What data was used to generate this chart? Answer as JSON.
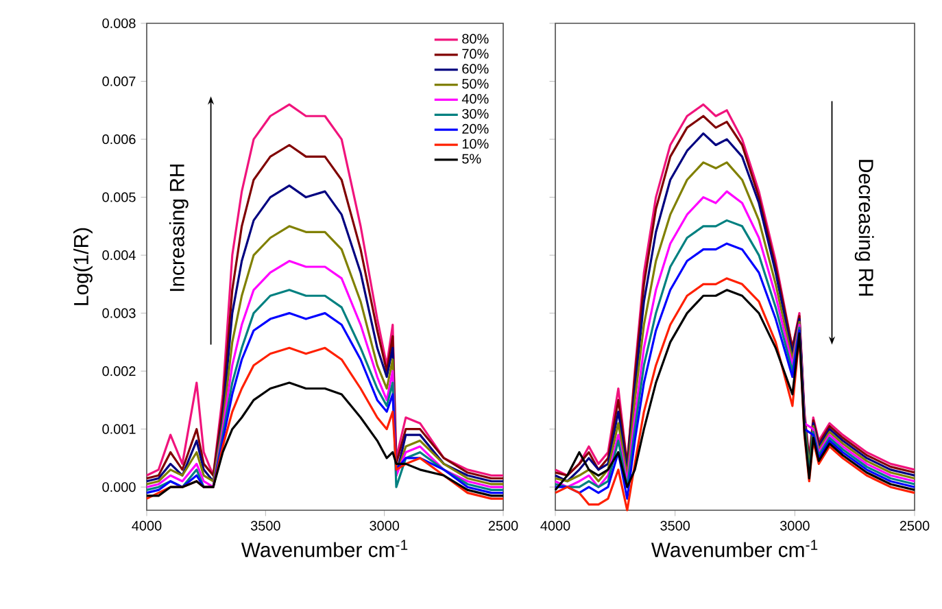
{
  "chart_data": [
    {
      "type": "line",
      "xlabel": "Wavenumber cm$^{-1}$",
      "ylabel": "Log(1/R)",
      "annotations": [
        "Increasing RH"
      ],
      "legend": "top right",
      "xlim": [
        4000,
        2500
      ],
      "xticks": [
        4000,
        3500,
        3000,
        2500
      ],
      "ylim": [
        -0.0004,
        0.008
      ],
      "yticks": [
        {
          "value": 0,
          "label": "0.000"
        },
        {
          "value": 0.001,
          "label": "0.001"
        },
        {
          "value": 0.002,
          "label": "0.002"
        },
        {
          "value": 0.003,
          "label": "0.003"
        },
        {
          "value": 0.004,
          "label": "0.004"
        },
        {
          "value": 0.005,
          "label": "0.005"
        },
        {
          "value": 0.006,
          "label": "0.006"
        },
        {
          "value": 0.007,
          "label": "0.007"
        },
        {
          "value": 0.008,
          "label": "0.008"
        }
      ],
      "x": [
        4000,
        3950,
        3900,
        3850,
        3790,
        3760,
        3720,
        3680,
        3640,
        3600,
        3550,
        3480,
        3400,
        3330,
        3250,
        3180,
        3100,
        3030,
        2990,
        2965,
        2950,
        2910,
        2850,
        2750,
        2650,
        2550,
        2500
      ],
      "series": [
        {
          "name": "80%",
          "color": "#f0147c",
          "values": [
            0.0002,
            0.0003,
            0.0009,
            0.0004,
            0.0018,
            0.0006,
            0.0002,
            0.0016,
            0.004,
            0.0051,
            0.006,
            0.0064,
            0.0066,
            0.0064,
            0.0064,
            0.006,
            0.0045,
            0.0029,
            0.0021,
            0.0028,
            0.0005,
            0.0012,
            0.0011,
            0.0005,
            0.0003,
            0.0002,
            0.0002
          ]
        },
        {
          "name": "70%",
          "color": "#800000",
          "values": [
            0.00015,
            0.0002,
            0.0006,
            0.0003,
            0.001,
            0.0004,
            0.0002,
            0.0014,
            0.0034,
            0.0045,
            0.0053,
            0.0057,
            0.0059,
            0.0057,
            0.0057,
            0.0053,
            0.0041,
            0.0027,
            0.002,
            0.0026,
            0.0004,
            0.001,
            0.001,
            0.0005,
            0.00025,
            0.00015,
            0.00015
          ]
        },
        {
          "name": "60%",
          "color": "#000080",
          "values": [
            0.0001,
            0.00015,
            0.0004,
            0.0002,
            0.0008,
            0.0003,
            0.0001,
            0.0012,
            0.003,
            0.0039,
            0.0046,
            0.005,
            0.0052,
            0.005,
            0.0051,
            0.0047,
            0.0037,
            0.0024,
            0.0019,
            0.0024,
            0.0002,
            0.0009,
            0.0009,
            0.0004,
            0.0002,
            0.0001,
            0.0001
          ]
        },
        {
          "name": "50%",
          "color": "#808000",
          "values": [
            5e-05,
            0.0001,
            0.0003,
            0.0002,
            0.0006,
            0.0002,
            0.0001,
            0.0011,
            0.0025,
            0.0033,
            0.004,
            0.0043,
            0.0045,
            0.0044,
            0.0044,
            0.0041,
            0.0032,
            0.0021,
            0.0017,
            0.0022,
            0.0002,
            0.0007,
            0.0008,
            0.0004,
            0.00015,
            5e-05,
            5e-05
          ]
        },
        {
          "name": "40%",
          "color": "#ff00ff",
          "values": [
            0,
            5e-05,
            0.0002,
            0.0001,
            0.0004,
            0.0001,
            0,
            0.001,
            0.0021,
            0.0028,
            0.0034,
            0.0037,
            0.0039,
            0.0038,
            0.0038,
            0.0036,
            0.0028,
            0.0019,
            0.0015,
            0.002,
            0.0002,
            0.0006,
            0.0007,
            0.0003,
            0.0001,
            0,
            0
          ]
        },
        {
          "name": "30%",
          "color": "#008080",
          "values": [
            -5e-05,
            0,
            0.0001,
            0,
            0.0003,
            0,
            0,
            0.0009,
            0.0018,
            0.0024,
            0.003,
            0.0033,
            0.0034,
            0.0033,
            0.0033,
            0.0031,
            0.0024,
            0.0017,
            0.0014,
            0.0018,
            0,
            0.0005,
            0.0006,
            0.0003,
            5e-05,
            -5e-05,
            -5e-05
          ]
        },
        {
          "name": "20%",
          "color": "#0000ff",
          "values": [
            -0.0001,
            -5e-05,
            0.0001,
            0,
            0.0002,
            0,
            0,
            0.0008,
            0.0016,
            0.0022,
            0.0027,
            0.0029,
            0.003,
            0.0029,
            0.003,
            0.0028,
            0.0022,
            0.0015,
            0.0013,
            0.0016,
            0.0003,
            0.0005,
            0.0005,
            0.0003,
            0,
            -0.0001,
            -0.0001
          ]
        },
        {
          "name": "10%",
          "color": "#ff2000",
          "values": [
            -0.0002,
            -0.0001,
            0,
            0,
            0.0001,
            0,
            0,
            0.0007,
            0.0013,
            0.0017,
            0.0021,
            0.0023,
            0.0024,
            0.0023,
            0.0024,
            0.0022,
            0.0017,
            0.0012,
            0.001,
            0.0013,
            0.0003,
            0.0004,
            0.0005,
            0.0002,
            -0.0001,
            -0.0002,
            -0.0002
          ]
        },
        {
          "name": "5%",
          "color": "#000000",
          "values": [
            -0.00015,
            -0.00015,
            0,
            0,
            0.0001,
            0,
            0,
            0.0006,
            0.001,
            0.0012,
            0.0015,
            0.0017,
            0.0018,
            0.0017,
            0.0017,
            0.0016,
            0.0012,
            0.0008,
            0.0005,
            0.0006,
            0.0004,
            0.0004,
            0.0003,
            0.0002,
            -5e-05,
            -0.00015,
            -0.00015
          ]
        }
      ]
    },
    {
      "type": "line",
      "xlabel": "Wavenumber cm$^{-1}$",
      "annotations": [
        "Decreasing RH"
      ],
      "tick_labels": "x",
      "xlim": [
        4000,
        2500
      ],
      "xticks": [
        4000,
        3500,
        3000,
        2500
      ],
      "ylim": [
        -0.0004,
        0.008
      ],
      "yticks": [
        0,
        0.001,
        0.002,
        0.003,
        0.004,
        0.005,
        0.006,
        0.007,
        0.008
      ],
      "x": [
        4000,
        3950,
        3900,
        3860,
        3820,
        3780,
        3737,
        3700,
        3668,
        3630,
        3580,
        3520,
        3450,
        3382,
        3330,
        3284,
        3220,
        3150,
        3080,
        3010,
        2981,
        2960,
        2940,
        2923,
        2900,
        2855,
        2800,
        2700,
        2600,
        2500
      ],
      "series": [
        {
          "color": "#f0147c",
          "values": [
            0.0003,
            0.0002,
            0.0004,
            0.0007,
            0.0004,
            0.0006,
            0.0017,
            0.0004,
            0.002,
            0.0037,
            0.005,
            0.0059,
            0.0064,
            0.0066,
            0.0064,
            0.0065,
            0.006,
            0.0051,
            0.0039,
            0.0024,
            0.003,
            0.0013,
            0.0005,
            0.0012,
            0.0008,
            0.0011,
            0.0009,
            0.0006,
            0.0004,
            0.0003
          ]
        },
        {
          "color": "#800000",
          "values": [
            0.00025,
            0.0002,
            0.0004,
            0.0006,
            0.0003,
            0.0005,
            0.0015,
            0.0004,
            0.0019,
            0.0035,
            0.0048,
            0.0057,
            0.0062,
            0.0064,
            0.0062,
            0.0063,
            0.0059,
            0.005,
            0.0038,
            0.0024,
            0.00295,
            0.00125,
            0.00045,
            0.00115,
            0.00075,
            0.00105,
            0.00085,
            0.00055,
            0.00035,
            0.00025
          ]
        },
        {
          "color": "#000080",
          "values": [
            0.0002,
            0.0001,
            0.0003,
            0.0005,
            0.0003,
            0.0004,
            0.0013,
            0.0003,
            0.0017,
            0.0032,
            0.0044,
            0.0053,
            0.0058,
            0.0061,
            0.0059,
            0.006,
            0.0057,
            0.0049,
            0.0037,
            0.0023,
            0.0029,
            0.0012,
            0.0004,
            0.0011,
            0.0007,
            0.001,
            0.0008,
            0.0005,
            0.0003,
            0.0002
          ]
        },
        {
          "color": "#808000",
          "values": [
            0.00015,
            0.0001,
            0.0002,
            0.0003,
            0.0001,
            0.0003,
            0.0011,
            0.0002,
            0.0015,
            0.0028,
            0.0039,
            0.0047,
            0.0053,
            0.0056,
            0.0055,
            0.0056,
            0.0053,
            0.0046,
            0.0035,
            0.0022,
            0.00285,
            0.00115,
            0.00035,
            0.00105,
            0.00065,
            0.00095,
            0.00075,
            0.00045,
            0.00025,
            0.00015
          ]
        },
        {
          "color": "#ff00ff",
          "values": [
            0.0001,
            0,
            0.0001,
            0.0002,
            0,
            0.0002,
            0.0009,
            0.0001,
            0.0012,
            0.0024,
            0.0034,
            0.0042,
            0.0047,
            0.005,
            0.0049,
            0.0051,
            0.0049,
            0.0043,
            0.0033,
            0.0021,
            0.0028,
            0.0011,
            null,
            0.001,
            0.0006,
            0.0009,
            0.0007,
            0.0004,
            0.0002,
            0.0001
          ]
        },
        {
          "color": "#008080",
          "values": [
            5e-05,
            0,
            0,
            0.0001,
            0,
            0.0001,
            0.0008,
            0,
            0.001,
            0.0021,
            0.003,
            0.0038,
            0.0043,
            0.0045,
            0.0045,
            0.0046,
            0.0045,
            0.004,
            0.0031,
            0.002,
            0.00275,
            0.00105,
            0.00025,
            0.00095,
            0.00055,
            0.00085,
            0.00065,
            0.00035,
            0.00015,
            5e-05
          ]
        },
        {
          "color": "#0000ff",
          "values": [
            0,
            0,
            -0.0001,
            0,
            -0.0001,
            0,
            0.0006,
            -0.0002,
            0.0008,
            0.0018,
            0.0027,
            0.0034,
            0.0039,
            0.0041,
            0.0041,
            0.0042,
            0.0041,
            0.0037,
            0.0029,
            0.0019,
            0.0027,
            0.001,
            null,
            0.0009,
            0.0005,
            0.0008,
            0.0006,
            0.0003,
            0.0001,
            0
          ]
        },
        {
          "color": "#ff2000",
          "values": [
            -0.0001,
            0,
            -0.0001,
            -0.0003,
            -0.0003,
            -0.0002,
            0.0003,
            -0.0004,
            0.0004,
            0.0013,
            0.0021,
            0.0028,
            0.0033,
            0.0035,
            0.0035,
            0.0036,
            0.0035,
            0.0032,
            0.0025,
            0.0014,
            0.0026,
            0.0009,
            0.0001,
            0.0008,
            0.0004,
            0.0007,
            0.0005,
            0.0002,
            0,
            -0.0001
          ]
        },
        {
          "color": "#000000",
          "values": [
            -5e-05,
            0.0002,
            0.0006,
            0.0003,
            0.0002,
            0.0003,
            0.0006,
            0,
            0.0003,
            0.001,
            0.0018,
            0.0025,
            0.003,
            0.0033,
            0.0033,
            0.0034,
            0.0033,
            0.003,
            0.0024,
            0.0016,
            0.00265,
            0.00095,
            0.00015,
            0.00085,
            0.00045,
            0.00075,
            0.00055,
            0.00025,
            5e-05,
            -5e-05
          ]
        }
      ]
    }
  ]
}
